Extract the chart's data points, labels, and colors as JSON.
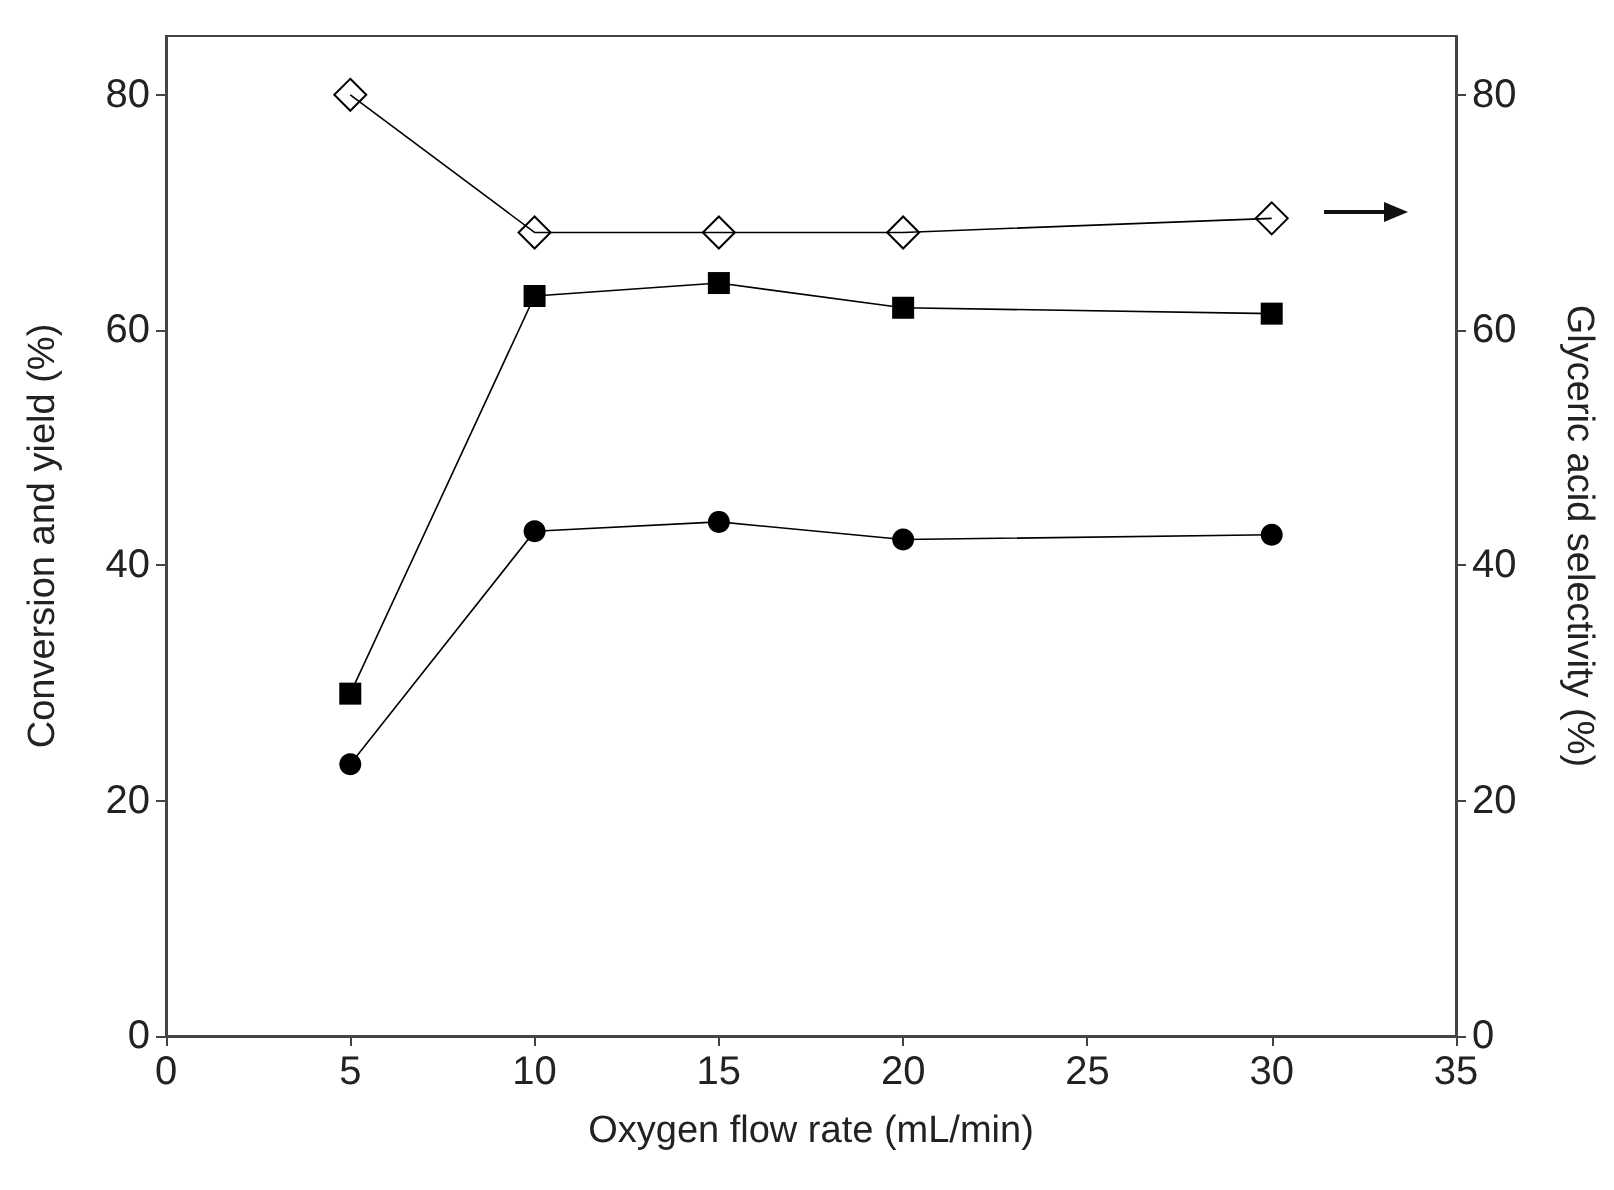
{
  "chart_data": {
    "type": "line",
    "xlabel": "Oxygen flow rate (mL/min)",
    "ylabel": "Conversion and yield (%)",
    "y2label": "Glyceric acid selectivity (%)",
    "x": [
      5,
      10,
      15,
      20,
      30
    ],
    "series": [
      {
        "color": "#000000",
        "marker": "diamond",
        "axis": "y2",
        "values": [
          80,
          68.3,
          68.3,
          68.3,
          69.5
        ]
      },
      {
        "color": "#000000",
        "marker": "square",
        "values": [
          29.1,
          62.9,
          64.0,
          61.9,
          61.4
        ]
      },
      {
        "color": "#000000",
        "marker": "circle",
        "values": [
          23.1,
          42.9,
          43.7,
          42.2,
          42.6
        ]
      }
    ],
    "xlim": [
      0,
      35
    ],
    "xticks": [
      0,
      5,
      10,
      15,
      20,
      25,
      30,
      35
    ],
    "ylim": [
      0,
      85
    ],
    "yticks": [
      0,
      20,
      40,
      60,
      80
    ],
    "y2lim": [
      0,
      85
    ],
    "y2ticks": [
      0,
      20,
      40,
      60,
      80
    ],
    "grid": false,
    "line_style": "solid"
  }
}
